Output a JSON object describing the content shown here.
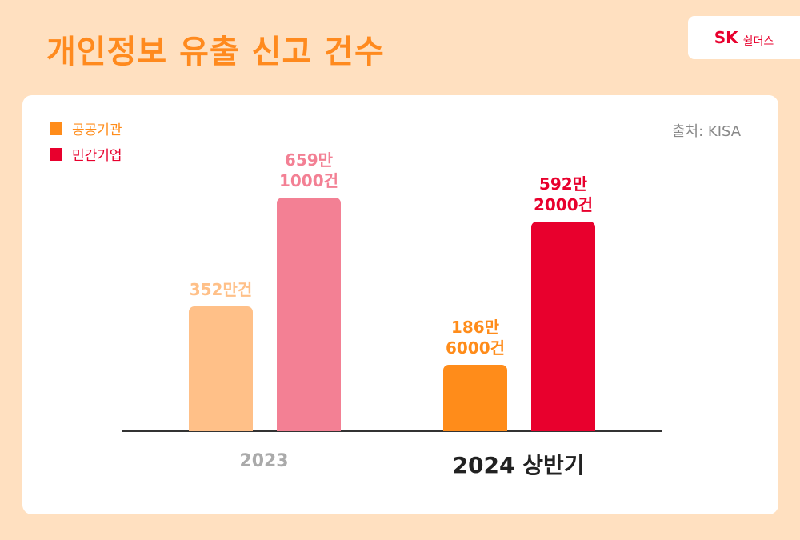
{
  "title": "개인정보 유출 신고 건수",
  "logo": {
    "brand": "SK",
    "name": "쉴더스"
  },
  "chart_data": {
    "type": "bar",
    "source": "출처: KISA",
    "categories": [
      "2023",
      "2024 상반기"
    ],
    "series": [
      {
        "name": "공공기관",
        "color": "#ff8c1a",
        "colors": [
          "#ffc088",
          "#ff8c1a"
        ],
        "values": [
          352,
          186.6
        ],
        "value_labels": [
          "352만건",
          "186만\n6000건"
        ]
      },
      {
        "name": "민간기업",
        "color": "#e8002d",
        "colors": [
          "#f38094",
          "#e8002d"
        ],
        "values": [
          659.1,
          592.2
        ],
        "value_labels": [
          "659만\n1000건",
          "592만\n2000건"
        ]
      }
    ],
    "legend": "top-left"
  }
}
